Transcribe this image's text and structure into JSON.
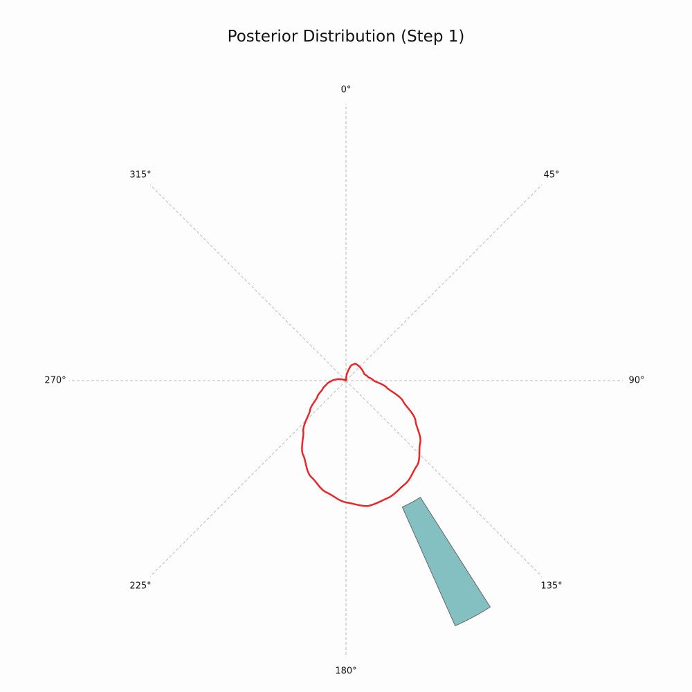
{
  "chart_data": {
    "type": "polar",
    "title": "Posterior Distribution (Step 1)",
    "angle_direction": "clockwise",
    "zero_location": "top",
    "angular_ticks": [
      "0°",
      "45°",
      "90°",
      "135°",
      "180°",
      "225°",
      "270°",
      "315°"
    ],
    "radial_range": [
      0,
      1
    ],
    "grid": true,
    "series": [
      {
        "kind": "curve",
        "color": "#e8262a",
        "points": [
          [
            0,
            0.0
          ],
          [
            10,
            0.03
          ],
          [
            20,
            0.06
          ],
          [
            30,
            0.07
          ],
          [
            40,
            0.07
          ],
          [
            50,
            0.07
          ],
          [
            60,
            0.07
          ],
          [
            70,
            0.07
          ],
          [
            80,
            0.08
          ],
          [
            90,
            0.1
          ],
          [
            100,
            0.15
          ],
          [
            110,
            0.22
          ],
          [
            120,
            0.29
          ],
          [
            130,
            0.35
          ],
          [
            140,
            0.4
          ],
          [
            150,
            0.43
          ],
          [
            160,
            0.45
          ],
          [
            170,
            0.46
          ],
          [
            180,
            0.44
          ],
          [
            190,
            0.41
          ],
          [
            200,
            0.37
          ],
          [
            210,
            0.31
          ],
          [
            220,
            0.24
          ],
          [
            230,
            0.17
          ],
          [
            240,
            0.12
          ],
          [
            250,
            0.09
          ],
          [
            260,
            0.07
          ],
          [
            270,
            0.05
          ],
          [
            280,
            0.03
          ],
          [
            290,
            0.01
          ],
          [
            300,
            0.0
          ],
          [
            360,
            0.0
          ]
        ]
      },
      {
        "kind": "bar",
        "color": "#84bfc1",
        "edge_color": "#666666",
        "theta_start": 147.5,
        "theta_end": 156,
        "r_inner": 0.5,
        "r_outer": 0.97
      }
    ]
  }
}
